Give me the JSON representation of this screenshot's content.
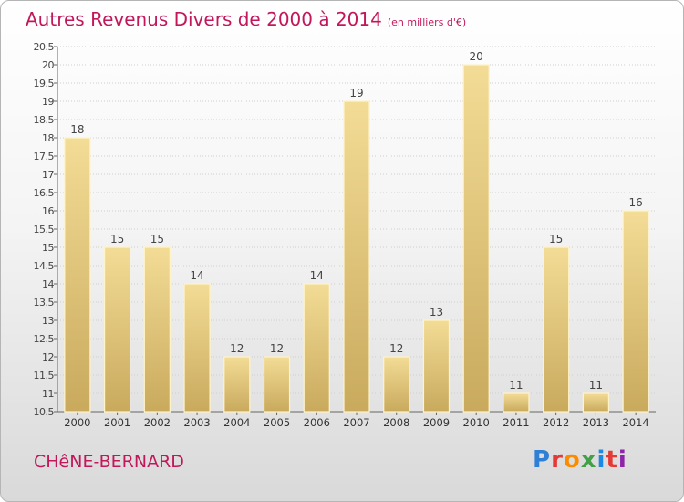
{
  "header": {
    "title": "Autres Revenus Divers de 2000 à 2014",
    "unit": "(en milliers d'€)"
  },
  "footer": {
    "commune": "CHêNE-BERNARD",
    "brand": "Proxiti",
    "brand_colors": [
      "#2e7fd6",
      "#e53935",
      "#fb8c00",
      "#43a047",
      "#1e88e5",
      "#e53935",
      "#8e24aa"
    ]
  },
  "colors": {
    "bar_fill_top": "#f3dc96",
    "bar_fill_bottom": "#c9aa5d",
    "bar_stroke": "#fff3c8",
    "title": "#c2185b",
    "grid": "#cfcfcf",
    "axis": "#666666"
  },
  "chart_data": {
    "type": "bar",
    "title": "Autres Revenus Divers de 2000 à 2014",
    "xlabel": "",
    "ylabel": "",
    "categories": [
      "2000",
      "2001",
      "2002",
      "2003",
      "2004",
      "2005",
      "2006",
      "2007",
      "2008",
      "2009",
      "2010",
      "2011",
      "2012",
      "2013",
      "2014"
    ],
    "values": [
      18,
      15,
      15,
      14,
      12,
      12,
      14,
      19,
      12,
      13,
      20,
      11,
      15,
      11,
      16
    ],
    "data_labels": [
      "18",
      "15",
      "15",
      "14",
      "12",
      "12",
      "14",
      "19",
      "12",
      "13",
      "20",
      "11",
      "15",
      "11",
      "16"
    ],
    "ylim": [
      10.5,
      20.5
    ],
    "yticks": [
      "10.5",
      "11",
      "11.5",
      "12",
      "12.5",
      "13",
      "13.5",
      "14",
      "14.5",
      "15",
      "15.5",
      "16",
      "16.5",
      "17",
      "17.5",
      "18",
      "18.5",
      "19",
      "19.5",
      "20",
      "20.5"
    ],
    "grid": true,
    "legend": "none"
  }
}
